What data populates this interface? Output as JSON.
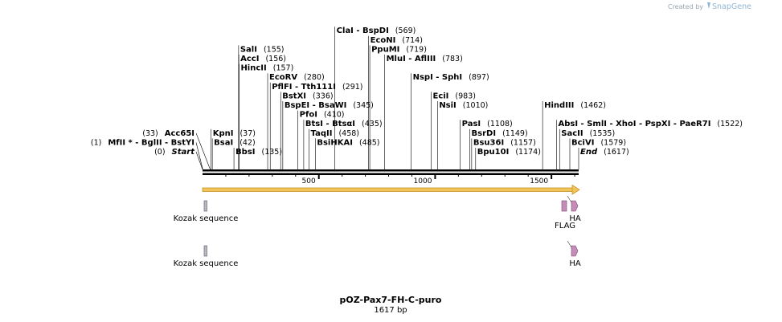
{
  "credit": {
    "prefix": "Created by",
    "brand": "SnapGene"
  },
  "plasmid": {
    "name": "pOZ-Pax7-FH-C-puro",
    "length_label": "1617 bp",
    "length": 1617
  },
  "colors": {
    "backbone": "#000000",
    "orf_fill": "#f0c45a",
    "orf_stroke": "#c89320",
    "kozak_fill": "#b9b9c9",
    "tag_fill": "#c48cb6",
    "tag_stroke": "#7a4a73"
  },
  "ruler": [
    {
      "label": "500",
      "pos": 500
    },
    {
      "label": "1000",
      "pos": 1000
    },
    {
      "label": "1500",
      "pos": 1500
    }
  ],
  "sites": [
    {
      "id": "start",
      "text": [
        {
          "t": "Start",
          "italic": true
        }
      ],
      "num": "(0)",
      "bp": 0,
      "row": 0,
      "side": "left"
    },
    {
      "id": "mlui-bglii",
      "text": [
        {
          "t": "MfII *"
        },
        {
          "t": " - BglII"
        },
        {
          "t": " - BstYI"
        }
      ],
      "num": "(1)",
      "bp": 1,
      "row": 1,
      "side": "left"
    },
    {
      "id": "acc65i",
      "text": [
        {
          "t": "Acc65I"
        }
      ],
      "num": "(33)",
      "bp": 33,
      "row": 2,
      "side": "left"
    },
    {
      "id": "bbsi",
      "text": [
        {
          "t": "BbsI"
        }
      ],
      "num": "(135)",
      "bp": 135,
      "row": 0,
      "side": "right"
    },
    {
      "id": "bsai",
      "text": [
        {
          "t": "BsaI"
        }
      ],
      "num": "(42)",
      "bp": 42,
      "row": 1,
      "side": "right"
    },
    {
      "id": "kpni",
      "text": [
        {
          "t": "KpnI"
        }
      ],
      "num": "(37)",
      "bp": 37,
      "row": 2,
      "side": "right"
    },
    {
      "id": "hincii",
      "text": [
        {
          "t": "HincII"
        }
      ],
      "num": "(157)",
      "bp": 157,
      "row": 9,
      "side": "right"
    },
    {
      "id": "acci",
      "text": [
        {
          "t": "AccI"
        }
      ],
      "num": "(156)",
      "bp": 156,
      "row": 10,
      "side": "right"
    },
    {
      "id": "sali",
      "text": [
        {
          "t": "SalI"
        }
      ],
      "num": "(155)",
      "bp": 155,
      "row": 11,
      "side": "right"
    },
    {
      "id": "ecorv",
      "text": [
        {
          "t": "EcoRV"
        }
      ],
      "num": "(280)",
      "bp": 280,
      "row": 8,
      "side": "right"
    },
    {
      "id": "pflfi",
      "text": [
        {
          "t": "PflFI"
        },
        {
          "t": " - Tth111I"
        }
      ],
      "num": "(291)",
      "bp": 291,
      "row": 7,
      "side": "right"
    },
    {
      "id": "bstxi",
      "text": [
        {
          "t": "BstXI"
        }
      ],
      "num": "(336)",
      "bp": 336,
      "row": 6,
      "side": "right"
    },
    {
      "id": "bspei",
      "text": [
        {
          "t": "BspEI"
        },
        {
          "t": " - BsaWI"
        }
      ],
      "num": "(345)",
      "bp": 345,
      "row": 5,
      "side": "right"
    },
    {
      "id": "pfoi",
      "text": [
        {
          "t": "PfoI"
        }
      ],
      "num": "(410)",
      "bp": 410,
      "row": 4,
      "side": "right"
    },
    {
      "id": "btsi",
      "text": [
        {
          "t": "BtsI"
        },
        {
          "t": " - BtsαI"
        }
      ],
      "num": "(435)",
      "bp": 435,
      "row": 3,
      "side": "right"
    },
    {
      "id": "taqii",
      "text": [
        {
          "t": "TaqII"
        }
      ],
      "num": "(458)",
      "bp": 458,
      "row": 2,
      "side": "right"
    },
    {
      "id": "bsihkai",
      "text": [
        {
          "t": "BsiHKAI"
        }
      ],
      "num": "(485)",
      "bp": 485,
      "row": 1,
      "side": "right"
    },
    {
      "id": "clai",
      "text": [
        {
          "t": "ClaI"
        },
        {
          "t": " - BspDI"
        }
      ],
      "num": "(569)",
      "bp": 569,
      "row": 13,
      "side": "right"
    },
    {
      "id": "econi",
      "text": [
        {
          "t": "EcoNI"
        }
      ],
      "num": "(714)",
      "bp": 714,
      "row": 12,
      "side": "right"
    },
    {
      "id": "ppumi",
      "text": [
        {
          "t": "PpuMI"
        }
      ],
      "num": "(719)",
      "bp": 719,
      "row": 11,
      "side": "right"
    },
    {
      "id": "mlui",
      "text": [
        {
          "t": "MluI"
        },
        {
          "t": " - AflIII"
        }
      ],
      "num": "(783)",
      "bp": 783,
      "row": 10,
      "side": "right"
    },
    {
      "id": "nspi",
      "text": [
        {
          "t": "NspI"
        },
        {
          "t": " - SphI"
        }
      ],
      "num": "(897)",
      "bp": 897,
      "row": 8,
      "side": "right"
    },
    {
      "id": "ecii",
      "text": [
        {
          "t": "EciI"
        }
      ],
      "num": "(983)",
      "bp": 983,
      "row": 6,
      "side": "right"
    },
    {
      "id": "nsii",
      "text": [
        {
          "t": "NsiI"
        }
      ],
      "num": "(1010)",
      "bp": 1010,
      "row": 5,
      "side": "right"
    },
    {
      "id": "pasi",
      "text": [
        {
          "t": "PasI"
        }
      ],
      "num": "(1108)",
      "bp": 1108,
      "row": 3,
      "side": "right"
    },
    {
      "id": "bsrdi",
      "text": [
        {
          "t": "BsrDI"
        }
      ],
      "num": "(1149)",
      "bp": 1149,
      "row": 2,
      "side": "right"
    },
    {
      "id": "bsu36i",
      "text": [
        {
          "t": "Bsu36I"
        }
      ],
      "num": "(1157)",
      "bp": 1157,
      "row": 1,
      "side": "right"
    },
    {
      "id": "bpu10i",
      "text": [
        {
          "t": "Bpu10I"
        }
      ],
      "num": "(1174)",
      "bp": 1174,
      "row": 0,
      "side": "right"
    },
    {
      "id": "hindiii",
      "text": [
        {
          "t": "HindIII"
        }
      ],
      "num": "(1462)",
      "bp": 1462,
      "row": 5,
      "side": "right"
    },
    {
      "id": "absi",
      "text": [
        {
          "t": "AbsI"
        },
        {
          "t": " - SmlI"
        },
        {
          "t": " - XhoI"
        },
        {
          "t": " - PspXI"
        },
        {
          "t": " - PaeR7I"
        }
      ],
      "num": "(1522)",
      "bp": 1522,
      "row": 3,
      "side": "right"
    },
    {
      "id": "sacii",
      "text": [
        {
          "t": "SacII"
        }
      ],
      "num": "(1535)",
      "bp": 1535,
      "row": 2,
      "side": "right"
    },
    {
      "id": "bcivi",
      "text": [
        {
          "t": "BciVI"
        }
      ],
      "num": "(1579)",
      "bp": 1579,
      "row": 1,
      "side": "right"
    },
    {
      "id": "end",
      "text": [
        {
          "t": "End",
          "italic": true
        }
      ],
      "num": "(1617)",
      "bp": 1617,
      "row": 0,
      "side": "right"
    }
  ],
  "features": [
    {
      "id": "kozak1",
      "label": "Kozak sequence",
      "type": "box",
      "start": 4,
      "end": 14,
      "lane": 0
    },
    {
      "id": "flag",
      "label": "FLAG",
      "type": "arrow",
      "start": 1548,
      "end": 1572,
      "lane": 0,
      "label_below": true
    },
    {
      "id": "ha1",
      "label": "HA",
      "type": "arrow",
      "start": 1575,
      "end": 1602,
      "lane": 0
    },
    {
      "id": "kozak2",
      "label": "Kozak sequence",
      "type": "box",
      "start": 4,
      "end": 14,
      "lane": 1
    },
    {
      "id": "ha2",
      "label": "HA",
      "type": "arrow",
      "start": 1575,
      "end": 1602,
      "lane": 1
    }
  ]
}
